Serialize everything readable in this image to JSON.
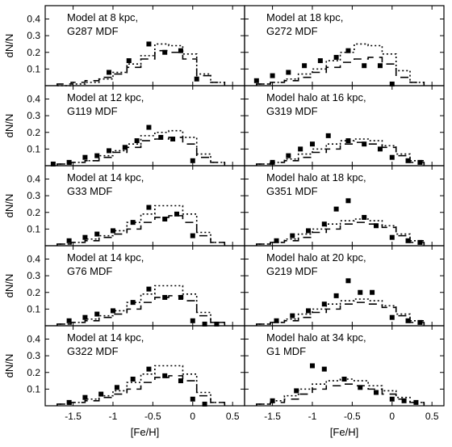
{
  "figure": {
    "ylabel": "dN/N",
    "xlabel": "[Fe/H]",
    "xlim": [
      -1.85,
      0.65
    ],
    "ylim": [
      0,
      0.48
    ],
    "xticks": [
      -1.5,
      -1,
      -0.5,
      0,
      0.5
    ],
    "xtick_labels": [
      "-1.5",
      "-1",
      "-0.5",
      "0",
      "0.5"
    ],
    "yticks": [
      0.1,
      0.2,
      0.3,
      0.4
    ],
    "ytick_labels": [
      "0.1",
      "0.2",
      "0.3",
      "0.4"
    ],
    "xbins": [
      -1.7,
      -1.525,
      -1.35,
      -1.175,
      -1.0,
      -0.825,
      -0.65,
      -0.475,
      -0.3,
      -0.125,
      0.05,
      0.225,
      0.4
    ]
  },
  "chart_data": [
    {
      "type": "scatter",
      "panel": "left-1",
      "label_line1": "Model at 8 kpc,",
      "label_line2": "G287 MDF",
      "points": {
        "x": [
          -1.05,
          -0.8,
          -0.55,
          -0.35,
          -0.15,
          0.05
        ],
        "y": [
          0.08,
          0.15,
          0.25,
          0.2,
          0.21,
          0.04
        ]
      },
      "model_dotted": [
        0.0,
        0.01,
        0.02,
        0.04,
        0.08,
        0.13,
        0.18,
        0.25,
        0.24,
        0.19,
        0.07,
        0.02
      ],
      "model_dashed": [
        0.01,
        0.02,
        0.03,
        0.05,
        0.07,
        0.11,
        0.16,
        0.21,
        0.2,
        0.16,
        0.06,
        0.02
      ]
    },
    {
      "type": "scatter",
      "panel": "left-2",
      "label_line1": "Model at 12 kpc,",
      "label_line2": "G119 MDF",
      "points": {
        "x": [
          -1.75,
          -1.55,
          -1.35,
          -1.2,
          -1.05,
          -0.85,
          -0.7,
          -0.55,
          -0.4,
          -0.25,
          0.0
        ],
        "y": [
          0.01,
          0.02,
          0.05,
          0.06,
          0.09,
          0.11,
          0.15,
          0.23,
          0.17,
          0.16,
          0.03
        ]
      },
      "model_dotted": [
        0.01,
        0.02,
        0.03,
        0.06,
        0.09,
        0.13,
        0.18,
        0.2,
        0.21,
        0.17,
        0.07,
        0.02
      ],
      "model_dashed": [
        0.01,
        0.02,
        0.03,
        0.05,
        0.08,
        0.11,
        0.15,
        0.16,
        0.17,
        0.13,
        0.05,
        0.02
      ]
    },
    {
      "type": "scatter",
      "panel": "left-3",
      "label_line1": "Model at 14 kpc,",
      "label_line2": "G33 MDF",
      "points": {
        "x": [
          -1.55,
          -1.35,
          -1.2,
          -1.0,
          -0.75,
          -0.55,
          -0.35,
          -0.2,
          0.0
        ],
        "y": [
          0.03,
          0.05,
          0.07,
          0.09,
          0.14,
          0.23,
          0.16,
          0.19,
          0.06
        ]
      },
      "model_dotted": [
        0.01,
        0.02,
        0.04,
        0.06,
        0.09,
        0.14,
        0.19,
        0.24,
        0.24,
        0.19,
        0.08,
        0.02
      ],
      "model_dashed": [
        0.01,
        0.02,
        0.03,
        0.05,
        0.07,
        0.1,
        0.14,
        0.17,
        0.18,
        0.14,
        0.06,
        0.02
      ]
    },
    {
      "type": "scatter",
      "panel": "left-4",
      "label_line1": "Model at 14 kpc,",
      "label_line2": "G76 MDF",
      "points": {
        "x": [
          -1.55,
          -1.35,
          -1.2,
          -1.0,
          -0.75,
          -0.55,
          -0.35,
          -0.15,
          0.0,
          0.15,
          0.3
        ],
        "y": [
          0.03,
          0.05,
          0.07,
          0.09,
          0.14,
          0.22,
          0.17,
          0.17,
          0.03,
          0.01,
          0.01
        ]
      },
      "model_dotted": [
        0.01,
        0.02,
        0.04,
        0.06,
        0.09,
        0.14,
        0.19,
        0.24,
        0.24,
        0.19,
        0.08,
        0.02
      ],
      "model_dashed": [
        0.01,
        0.02,
        0.03,
        0.05,
        0.07,
        0.1,
        0.14,
        0.17,
        0.18,
        0.15,
        0.06,
        0.02
      ]
    },
    {
      "type": "scatter",
      "panel": "left-5",
      "label_line1": "Model at 14 kpc,",
      "label_line2": "G322 MDF",
      "points": {
        "x": [
          -1.55,
          -1.35,
          -1.15,
          -0.95,
          -0.75,
          -0.55,
          -0.35,
          -0.15,
          0.0,
          0.15
        ],
        "y": [
          0.02,
          0.05,
          0.07,
          0.11,
          0.16,
          0.22,
          0.18,
          0.15,
          0.04,
          0.01
        ]
      },
      "model_dotted": [
        0.01,
        0.02,
        0.04,
        0.06,
        0.09,
        0.14,
        0.19,
        0.24,
        0.24,
        0.19,
        0.08,
        0.02
      ],
      "model_dashed": [
        0.01,
        0.02,
        0.03,
        0.05,
        0.07,
        0.1,
        0.14,
        0.17,
        0.18,
        0.15,
        0.06,
        0.02
      ]
    },
    {
      "type": "scatter",
      "panel": "right-1",
      "label_line1": "Model at 18 kpc,",
      "label_line2": "G272 MDF",
      "points": {
        "x": [
          -1.7,
          -1.5,
          -1.3,
          -1.1,
          -0.9,
          -0.7,
          -0.55,
          -0.35,
          -0.15,
          0.0
        ],
        "y": [
          0.03,
          0.06,
          0.08,
          0.12,
          0.15,
          0.17,
          0.21,
          0.12,
          0.12,
          0.01
        ]
      },
      "model_dotted": [
        0.01,
        0.02,
        0.04,
        0.07,
        0.1,
        0.15,
        0.2,
        0.25,
        0.24,
        0.19,
        0.09,
        0.02
      ],
      "model_dashed": [
        0.01,
        0.02,
        0.03,
        0.05,
        0.08,
        0.11,
        0.14,
        0.16,
        0.17,
        0.13,
        0.05,
        0.02
      ]
    },
    {
      "type": "scatter",
      "panel": "right-2",
      "label_line1": "Model halo at 16 kpc,",
      "label_line2": "G319 MDF",
      "points": {
        "x": [
          -1.5,
          -1.3,
          -1.15,
          -1.0,
          -0.8,
          -0.55,
          -0.35,
          -0.15,
          0.0,
          0.2,
          0.35
        ],
        "y": [
          0.02,
          0.06,
          0.1,
          0.13,
          0.18,
          0.15,
          0.13,
          0.1,
          0.05,
          0.03,
          0.02
        ]
      },
      "model_dotted": [
        0.01,
        0.02,
        0.04,
        0.07,
        0.1,
        0.13,
        0.15,
        0.16,
        0.15,
        0.12,
        0.07,
        0.03
      ],
      "model_dashed": [
        0.01,
        0.02,
        0.03,
        0.05,
        0.08,
        0.1,
        0.13,
        0.14,
        0.13,
        0.11,
        0.06,
        0.02
      ]
    },
    {
      "type": "scatter",
      "panel": "right-3",
      "label_line1": "Model halo at 18 kpc,",
      "label_line2": "G351 MDF",
      "points": {
        "x": [
          -1.45,
          -1.25,
          -1.05,
          -0.85,
          -0.7,
          -0.55,
          -0.35,
          -0.2,
          0.0,
          0.2,
          0.35
        ],
        "y": [
          0.03,
          0.06,
          0.09,
          0.13,
          0.22,
          0.27,
          0.17,
          0.12,
          0.05,
          0.03,
          0.02
        ]
      },
      "model_dotted": [
        0.01,
        0.02,
        0.04,
        0.07,
        0.1,
        0.13,
        0.15,
        0.16,
        0.15,
        0.12,
        0.07,
        0.03
      ],
      "model_dashed": [
        0.01,
        0.02,
        0.03,
        0.05,
        0.08,
        0.1,
        0.13,
        0.14,
        0.13,
        0.11,
        0.06,
        0.02
      ]
    },
    {
      "type": "scatter",
      "panel": "right-4",
      "label_line1": "Model halo at 20 kpc,",
      "label_line2": "G219 MDF",
      "points": {
        "x": [
          -1.45,
          -1.25,
          -1.05,
          -0.85,
          -0.7,
          -0.55,
          -0.4,
          -0.25,
          0.0,
          0.2,
          0.35
        ],
        "y": [
          0.03,
          0.06,
          0.09,
          0.13,
          0.18,
          0.27,
          0.2,
          0.2,
          0.05,
          0.03,
          0.02
        ]
      },
      "model_dotted": [
        0.01,
        0.02,
        0.04,
        0.07,
        0.1,
        0.13,
        0.15,
        0.16,
        0.15,
        0.12,
        0.07,
        0.03
      ],
      "model_dashed": [
        0.01,
        0.02,
        0.03,
        0.05,
        0.08,
        0.1,
        0.13,
        0.14,
        0.13,
        0.11,
        0.06,
        0.02
      ]
    },
    {
      "type": "scatter",
      "panel": "right-5",
      "label_line1": "Model halo at 34 kpc,",
      "label_line2": "G1 MDF",
      "points": {
        "x": [
          -1.5,
          -1.2,
          -1.0,
          -0.85,
          -0.6,
          -0.4,
          -0.2,
          0.0,
          0.15,
          0.3
        ],
        "y": [
          0.03,
          0.09,
          0.24,
          0.22,
          0.16,
          0.11,
          0.08,
          0.04,
          0.03,
          0.02
        ]
      },
      "model_dotted": [
        0.01,
        0.03,
        0.06,
        0.1,
        0.13,
        0.15,
        0.16,
        0.15,
        0.12,
        0.09,
        0.05,
        0.02
      ],
      "model_dashed": [
        0.01,
        0.02,
        0.04,
        0.07,
        0.1,
        0.12,
        0.13,
        0.12,
        0.1,
        0.07,
        0.04,
        0.02
      ]
    }
  ]
}
